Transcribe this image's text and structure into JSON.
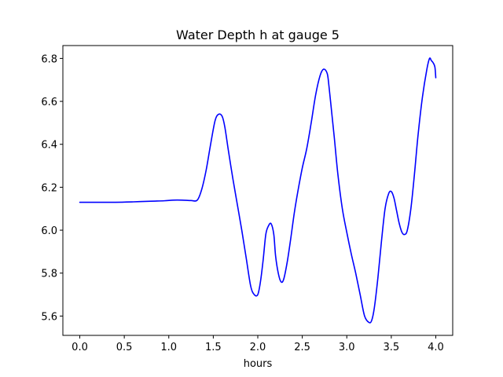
{
  "chart_data": {
    "type": "line",
    "title": "Water Depth h at gauge 5",
    "xlabel": "hours",
    "ylabel": "",
    "xlim": [
      -0.19,
      4.19
    ],
    "ylim": [
      5.51,
      6.86
    ],
    "xticks": [
      0.0,
      0.5,
      1.0,
      1.5,
      2.0,
      2.5,
      3.0,
      3.5,
      4.0
    ],
    "xtick_labels": [
      "0.0",
      "0.5",
      "1.0",
      "1.5",
      "2.0",
      "2.5",
      "3.0",
      "3.5",
      "4.0"
    ],
    "yticks": [
      5.6,
      5.8,
      6.0,
      6.2,
      6.4,
      6.6,
      6.8
    ],
    "ytick_labels": [
      "5.6",
      "5.8",
      "6.0",
      "6.2",
      "6.4",
      "6.6",
      "6.8"
    ],
    "grid": false,
    "series": [
      {
        "color": "#0000ff",
        "x": [
          0.0,
          0.2,
          0.4,
          0.6,
          0.8,
          0.95,
          1.05,
          1.15,
          1.25,
          1.32,
          1.37,
          1.42,
          1.47,
          1.52,
          1.56,
          1.6,
          1.63,
          1.67,
          1.72,
          1.77,
          1.82,
          1.87,
          1.92,
          1.96,
          2.0,
          2.03,
          2.06,
          2.09,
          2.12,
          2.15,
          2.18,
          2.2,
          2.23,
          2.26,
          2.29,
          2.33,
          2.37,
          2.41,
          2.45,
          2.5,
          2.55,
          2.6,
          2.65,
          2.7,
          2.74,
          2.78,
          2.8,
          2.83,
          2.86,
          2.9,
          2.95,
          3.0,
          3.05,
          3.1,
          3.15,
          3.2,
          3.25,
          3.28,
          3.31,
          3.35,
          3.39,
          3.43,
          3.47,
          3.5,
          3.53,
          3.56,
          3.59,
          3.62,
          3.65,
          3.68,
          3.72,
          3.76,
          3.8,
          3.85,
          3.9,
          3.93,
          3.95,
          3.97,
          3.99,
          4.0
        ],
        "y": [
          6.13,
          6.13,
          6.13,
          6.132,
          6.135,
          6.137,
          6.14,
          6.14,
          6.138,
          6.14,
          6.19,
          6.28,
          6.4,
          6.51,
          6.54,
          6.53,
          6.48,
          6.37,
          6.24,
          6.12,
          6.0,
          5.87,
          5.74,
          5.7,
          5.7,
          5.76,
          5.86,
          5.98,
          6.02,
          6.03,
          5.98,
          5.88,
          5.8,
          5.76,
          5.77,
          5.85,
          5.96,
          6.08,
          6.18,
          6.29,
          6.38,
          6.5,
          6.63,
          6.72,
          6.75,
          6.73,
          6.67,
          6.55,
          6.43,
          6.26,
          6.1,
          5.99,
          5.89,
          5.8,
          5.7,
          5.6,
          5.57,
          5.58,
          5.64,
          5.78,
          5.95,
          6.1,
          6.17,
          6.18,
          6.15,
          6.09,
          6.03,
          5.99,
          5.98,
          6.0,
          6.1,
          6.26,
          6.44,
          6.62,
          6.75,
          6.8,
          6.79,
          6.78,
          6.76,
          6.71
        ]
      }
    ]
  }
}
